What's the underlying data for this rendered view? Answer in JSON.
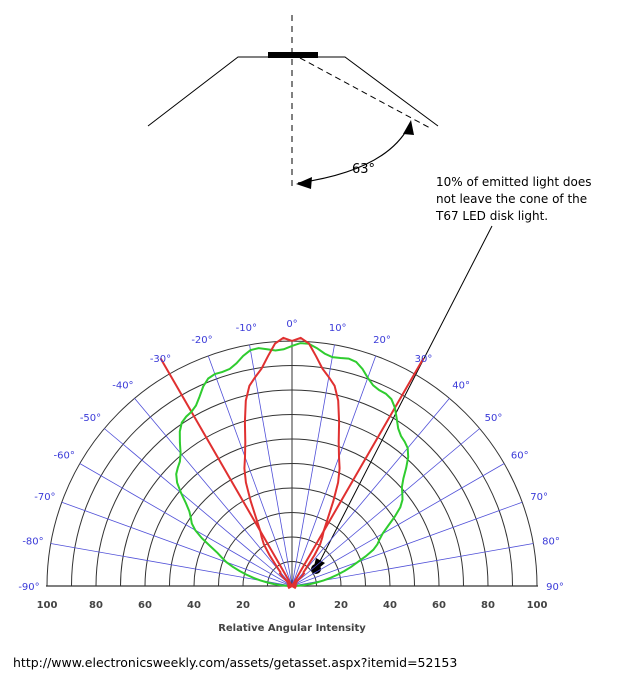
{
  "cone_diagram": {
    "angle_label": "63°"
  },
  "annotation": {
    "lines": [
      "10% of emitted light does",
      "not leave the cone of the",
      "T67 LED disk light."
    ]
  },
  "polar_chart": {
    "angle_labels": [
      "-90°",
      "-80°",
      "-70°",
      "-60°",
      "-50°",
      "-40°",
      "-30°",
      "-20°",
      "-10°",
      "0°",
      "10°",
      "20°",
      "30°",
      "40°",
      "50°",
      "60°",
      "70°",
      "80°",
      "90°"
    ],
    "intensity_ticks": [
      "100",
      "80",
      "60",
      "40",
      "20",
      "0",
      "20",
      "40",
      "60",
      "80",
      "100"
    ],
    "axis_title": "Relative Angular Intensity",
    "highlight_angle": 30,
    "colors": {
      "grid": "#333333",
      "spokes": "#5050d8",
      "angle_labels": "#3a3ad8",
      "narrow_curve": "#e03030",
      "wide_curve": "#2fcc2f",
      "cone_lines": "#e03030"
    }
  },
  "source": {
    "url": "http://www.electronicsweekly.com/assets/getasset.aspx?itemid=52153"
  }
}
